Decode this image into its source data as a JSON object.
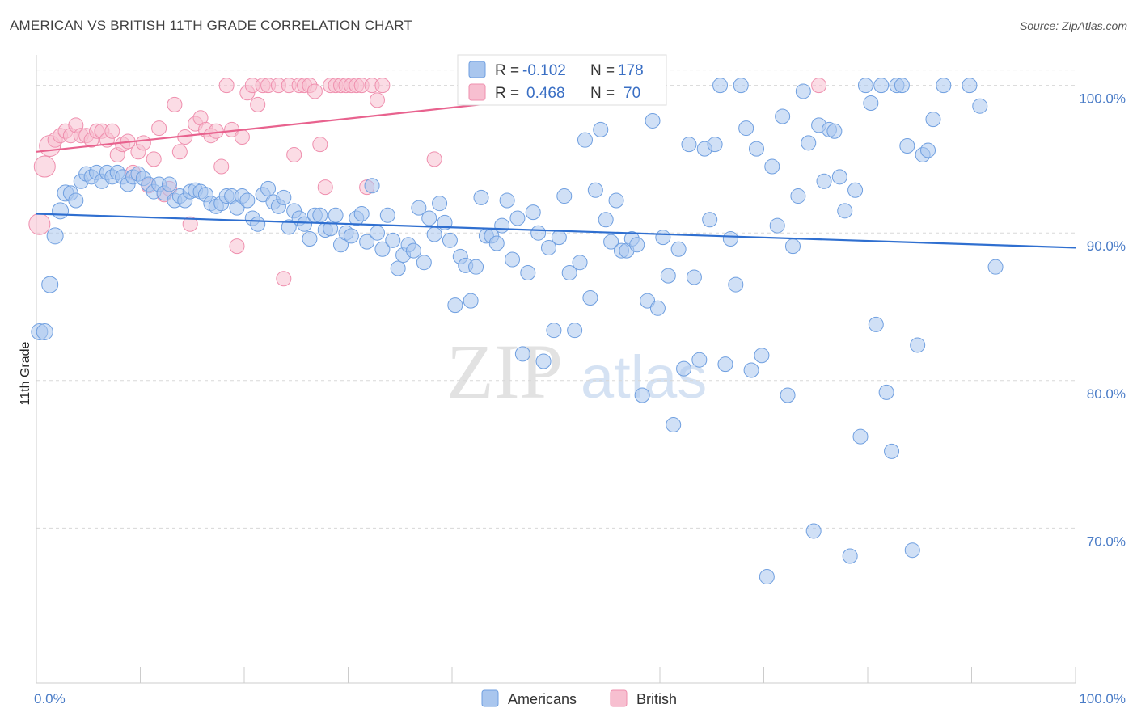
{
  "title": "AMERICAN VS BRITISH 11TH GRADE CORRELATION CHART",
  "source": "Source: ZipAtlas.com",
  "watermark": {
    "zip": "ZIP",
    "atlas": "atlas"
  },
  "colors": {
    "americans_fill": "#a9c6ee",
    "americans_stroke": "#6f9fe0",
    "americans_line": "#2f6fd0",
    "british_fill": "#f7bfd0",
    "british_stroke": "#ef8fae",
    "british_line": "#e8628e",
    "grid": "#d8d8d8",
    "tick_label": "#4a7cc7"
  },
  "legend": {
    "r_label": "R =",
    "n_label": "N =",
    "americans": {
      "r": "-0.102",
      "n": "178"
    },
    "british": {
      "r": "0.468",
      "n": "70"
    }
  },
  "chart_data": {
    "type": "scatter",
    "xlabel": "",
    "ylabel": "11th Grade",
    "xlim": [
      0,
      100
    ],
    "ylim": [
      59.5,
      102.5
    ],
    "x_tick_labels": [
      "0.0%",
      "100.0%"
    ],
    "y_ticks": [
      70,
      80,
      90,
      100
    ],
    "y_tick_labels": [
      "70.0%",
      "80.0%",
      "90.0%",
      "100.0%"
    ],
    "grid": true,
    "legend_position": "bottom-center",
    "series": [
      {
        "name": "Americans",
        "trend": {
          "x": [
            0,
            100
          ],
          "y": [
            91.3,
            89.0
          ]
        },
        "points": [
          [
            0.3,
            83.3
          ],
          [
            0.8,
            83.3
          ],
          [
            1.3,
            86.5
          ],
          [
            1.8,
            89.8
          ],
          [
            2.3,
            91.5
          ],
          [
            2.8,
            92.7
          ],
          [
            3.3,
            92.7
          ],
          [
            3.8,
            92.2
          ],
          [
            4.3,
            93.5
          ],
          [
            4.8,
            94.0
          ],
          [
            5.3,
            93.8
          ],
          [
            5.8,
            94.1
          ],
          [
            6.3,
            93.5
          ],
          [
            6.8,
            94.1
          ],
          [
            7.3,
            93.8
          ],
          [
            7.8,
            94.1
          ],
          [
            8.3,
            93.8
          ],
          [
            8.8,
            93.3
          ],
          [
            9.3,
            93.8
          ],
          [
            9.8,
            94.0
          ],
          [
            10.3,
            93.7
          ],
          [
            10.8,
            93.3
          ],
          [
            11.3,
            92.8
          ],
          [
            11.8,
            93.3
          ],
          [
            12.3,
            92.7
          ],
          [
            12.8,
            93.3
          ],
          [
            13.3,
            92.2
          ],
          [
            13.8,
            92.5
          ],
          [
            14.3,
            92.2
          ],
          [
            14.8,
            92.8
          ],
          [
            15.3,
            92.9
          ],
          [
            15.8,
            92.8
          ],
          [
            16.3,
            92.6
          ],
          [
            16.8,
            92.0
          ],
          [
            17.3,
            91.8
          ],
          [
            17.8,
            92.0
          ],
          [
            18.3,
            92.5
          ],
          [
            18.8,
            92.5
          ],
          [
            19.3,
            91.7
          ],
          [
            19.8,
            92.5
          ],
          [
            20.3,
            92.2
          ],
          [
            20.8,
            91.0
          ],
          [
            21.3,
            90.6
          ],
          [
            21.8,
            92.6
          ],
          [
            22.3,
            93.0
          ],
          [
            22.8,
            92.1
          ],
          [
            23.3,
            91.8
          ],
          [
            23.8,
            92.4
          ],
          [
            24.3,
            90.4
          ],
          [
            24.8,
            91.5
          ],
          [
            25.3,
            91.0
          ],
          [
            25.8,
            90.6
          ],
          [
            26.3,
            89.6
          ],
          [
            26.8,
            91.2
          ],
          [
            27.3,
            91.2
          ],
          [
            27.8,
            90.2
          ],
          [
            28.3,
            90.3
          ],
          [
            28.8,
            91.2
          ],
          [
            29.3,
            89.2
          ],
          [
            29.8,
            90.0
          ],
          [
            30.3,
            89.8
          ],
          [
            30.8,
            91.0
          ],
          [
            31.3,
            91.3
          ],
          [
            31.8,
            89.4
          ],
          [
            32.3,
            93.2
          ],
          [
            32.8,
            90.0
          ],
          [
            33.3,
            88.9
          ],
          [
            33.8,
            91.2
          ],
          [
            34.3,
            89.5
          ],
          [
            34.8,
            87.6
          ],
          [
            35.3,
            88.5
          ],
          [
            35.8,
            89.2
          ],
          [
            36.3,
            88.8
          ],
          [
            36.8,
            91.7
          ],
          [
            37.3,
            88.0
          ],
          [
            37.8,
            91.0
          ],
          [
            38.3,
            89.9
          ],
          [
            38.8,
            92.0
          ],
          [
            39.3,
            90.7
          ],
          [
            39.8,
            89.5
          ],
          [
            40.3,
            85.1
          ],
          [
            40.8,
            88.4
          ],
          [
            41.3,
            87.8
          ],
          [
            41.8,
            85.4
          ],
          [
            42.3,
            87.7
          ],
          [
            42.8,
            92.4
          ],
          [
            43.3,
            89.8
          ],
          [
            43.8,
            89.8
          ],
          [
            44.3,
            89.3
          ],
          [
            44.8,
            90.5
          ],
          [
            45.3,
            92.2
          ],
          [
            45.8,
            88.2
          ],
          [
            46.3,
            91.0
          ],
          [
            46.8,
            81.8
          ],
          [
            47.3,
            87.3
          ],
          [
            47.8,
            91.4
          ],
          [
            48.3,
            90.0
          ],
          [
            48.8,
            81.3
          ],
          [
            49.3,
            89.0
          ],
          [
            49.8,
            83.4
          ],
          [
            50.3,
            89.7
          ],
          [
            50.8,
            92.5
          ],
          [
            51.3,
            87.3
          ],
          [
            51.8,
            83.4
          ],
          [
            52.3,
            88.0
          ],
          [
            52.8,
            96.3
          ],
          [
            53.3,
            85.6
          ],
          [
            53.8,
            92.9
          ],
          [
            54.3,
            97.0
          ],
          [
            54.8,
            90.9
          ],
          [
            55.3,
            89.4
          ],
          [
            55.8,
            92.2
          ],
          [
            56.3,
            88.8
          ],
          [
            56.8,
            88.8
          ],
          [
            57.3,
            89.6
          ],
          [
            57.8,
            89.2
          ],
          [
            58.3,
            79.0
          ],
          [
            58.8,
            85.4
          ],
          [
            59.3,
            97.6
          ],
          [
            59.8,
            84.9
          ],
          [
            60.3,
            89.7
          ],
          [
            60.8,
            87.1
          ],
          [
            61.3,
            77.0
          ],
          [
            61.8,
            88.9
          ],
          [
            62.3,
            80.8
          ],
          [
            62.8,
            96.0
          ],
          [
            63.3,
            87.0
          ],
          [
            63.8,
            81.4
          ],
          [
            64.3,
            95.7
          ],
          [
            64.8,
            90.9
          ],
          [
            65.3,
            96.0
          ],
          [
            65.8,
            100.0
          ],
          [
            66.3,
            81.1
          ],
          [
            66.8,
            89.6
          ],
          [
            67.3,
            86.5
          ],
          [
            67.8,
            100.0
          ],
          [
            68.3,
            97.1
          ],
          [
            68.8,
            80.7
          ],
          [
            69.3,
            95.7
          ],
          [
            69.8,
            81.7
          ],
          [
            70.3,
            66.7
          ],
          [
            70.8,
            94.5
          ],
          [
            71.3,
            90.5
          ],
          [
            71.8,
            97.9
          ],
          [
            72.3,
            79.0
          ],
          [
            72.8,
            89.1
          ],
          [
            73.3,
            92.5
          ],
          [
            73.8,
            99.6
          ],
          [
            74.3,
            96.1
          ],
          [
            74.8,
            69.8
          ],
          [
            75.3,
            97.3
          ],
          [
            75.8,
            93.5
          ],
          [
            76.3,
            97.0
          ],
          [
            76.8,
            96.9
          ],
          [
            77.3,
            93.8
          ],
          [
            77.8,
            91.5
          ],
          [
            78.3,
            68.1
          ],
          [
            78.8,
            92.9
          ],
          [
            79.3,
            76.2
          ],
          [
            79.8,
            100.0
          ],
          [
            80.3,
            98.8
          ],
          [
            80.8,
            83.8
          ],
          [
            81.3,
            100.0
          ],
          [
            81.8,
            79.2
          ],
          [
            82.3,
            75.2
          ],
          [
            82.8,
            100.0
          ],
          [
            83.3,
            100.0
          ],
          [
            83.8,
            95.9
          ],
          [
            84.3,
            68.5
          ],
          [
            84.8,
            82.4
          ],
          [
            85.3,
            95.3
          ],
          [
            85.8,
            95.6
          ],
          [
            86.3,
            97.7
          ],
          [
            87.3,
            100.0
          ],
          [
            89.8,
            100.0
          ],
          [
            90.8,
            98.6
          ],
          [
            92.3,
            87.7
          ]
        ]
      },
      {
        "name": "British",
        "trend": {
          "x": [
            0,
            60
          ],
          "y": [
            95.5,
            100.0
          ]
        },
        "points": [
          [
            0.3,
            90.6
          ],
          [
            0.8,
            94.5
          ],
          [
            1.3,
            95.9
          ],
          [
            1.8,
            96.3
          ],
          [
            2.3,
            96.6
          ],
          [
            2.8,
            96.9
          ],
          [
            3.3,
            96.6
          ],
          [
            3.8,
            97.3
          ],
          [
            4.3,
            96.6
          ],
          [
            4.8,
            96.6
          ],
          [
            5.3,
            96.3
          ],
          [
            5.8,
            96.9
          ],
          [
            6.3,
            96.9
          ],
          [
            6.8,
            96.3
          ],
          [
            7.3,
            96.9
          ],
          [
            7.8,
            95.3
          ],
          [
            8.3,
            96.0
          ],
          [
            8.8,
            96.2
          ],
          [
            9.3,
            94.1
          ],
          [
            9.8,
            95.5
          ],
          [
            10.3,
            96.1
          ],
          [
            10.8,
            93.2
          ],
          [
            11.3,
            95.0
          ],
          [
            11.8,
            97.1
          ],
          [
            12.3,
            92.6
          ],
          [
            12.8,
            93.0
          ],
          [
            13.3,
            98.7
          ],
          [
            13.8,
            95.5
          ],
          [
            14.3,
            96.5
          ],
          [
            14.8,
            90.6
          ],
          [
            15.3,
            97.4
          ],
          [
            15.8,
            97.8
          ],
          [
            16.3,
            97.0
          ],
          [
            16.8,
            96.6
          ],
          [
            17.3,
            96.9
          ],
          [
            17.8,
            94.5
          ],
          [
            18.3,
            100.0
          ],
          [
            18.8,
            97.0
          ],
          [
            19.3,
            89.1
          ],
          [
            19.8,
            96.5
          ],
          [
            20.3,
            99.5
          ],
          [
            20.8,
            100.0
          ],
          [
            21.3,
            98.7
          ],
          [
            21.8,
            100.0
          ],
          [
            22.3,
            100.0
          ],
          [
            23.3,
            100.0
          ],
          [
            23.8,
            86.9
          ],
          [
            24.3,
            100.0
          ],
          [
            24.8,
            95.3
          ],
          [
            25.3,
            100.0
          ],
          [
            25.8,
            100.0
          ],
          [
            26.3,
            100.0
          ],
          [
            26.8,
            99.6
          ],
          [
            27.3,
            96.0
          ],
          [
            27.8,
            93.1
          ],
          [
            28.3,
            100.0
          ],
          [
            28.8,
            100.0
          ],
          [
            29.3,
            100.0
          ],
          [
            29.8,
            100.0
          ],
          [
            30.3,
            100.0
          ],
          [
            30.8,
            100.0
          ],
          [
            31.3,
            100.0
          ],
          [
            31.8,
            93.1
          ],
          [
            32.3,
            100.0
          ],
          [
            32.8,
            99.0
          ],
          [
            33.3,
            100.0
          ],
          [
            38.3,
            95.0
          ],
          [
            45.3,
            100.0
          ],
          [
            50.3,
            100.0
          ],
          [
            75.3,
            100.0
          ]
        ]
      }
    ]
  }
}
